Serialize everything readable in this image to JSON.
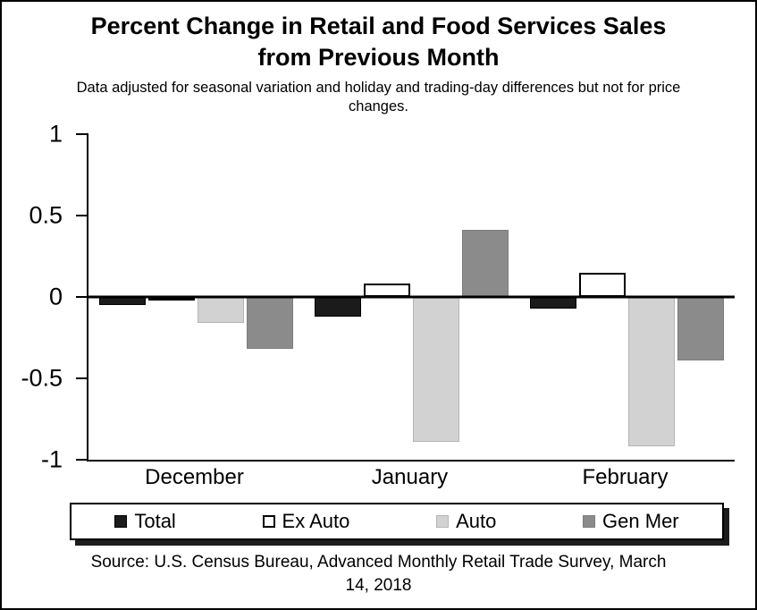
{
  "chart_data": {
    "type": "bar",
    "title": "Percent Change in Retail and Food Services Sales from Previous Month",
    "subtitle": "Data adjusted for seasonal variation and holiday and trading-day differences but not for price changes.",
    "categories": [
      "December",
      "January",
      "February"
    ],
    "series": [
      {
        "name": "Total",
        "color": "#1b1b1b",
        "border": "#000000",
        "border_width": 1,
        "values": [
          -0.05,
          -0.12,
          -0.07
        ]
      },
      {
        "name": "Ex Auto",
        "color": "#ffffff",
        "border": "#000000",
        "border_width": 2,
        "values": [
          -0.02,
          0.08,
          0.15
        ]
      },
      {
        "name": "Auto",
        "color": "#d2d2d2",
        "border": "#b5b5b5",
        "border_width": 1,
        "values": [
          -0.16,
          -0.89,
          -0.92
        ]
      },
      {
        "name": "Gen Mer",
        "color": "#8b8b8b",
        "border": "#7d7d7d",
        "border_width": 1,
        "values": [
          -0.32,
          0.41,
          -0.39
        ]
      }
    ],
    "ylim": [
      -1,
      1
    ],
    "yticks": [
      1,
      0.5,
      0,
      -0.5,
      -1
    ],
    "ytick_labels": [
      "1",
      "0.5",
      "0",
      "-0.5",
      "-1"
    ],
    "legend_position": "bottom",
    "grid": false
  },
  "source": {
    "text": "Source: U.S. Census Bureau, Advanced Monthly Retail Trade Survey, March 14, 2018"
  }
}
